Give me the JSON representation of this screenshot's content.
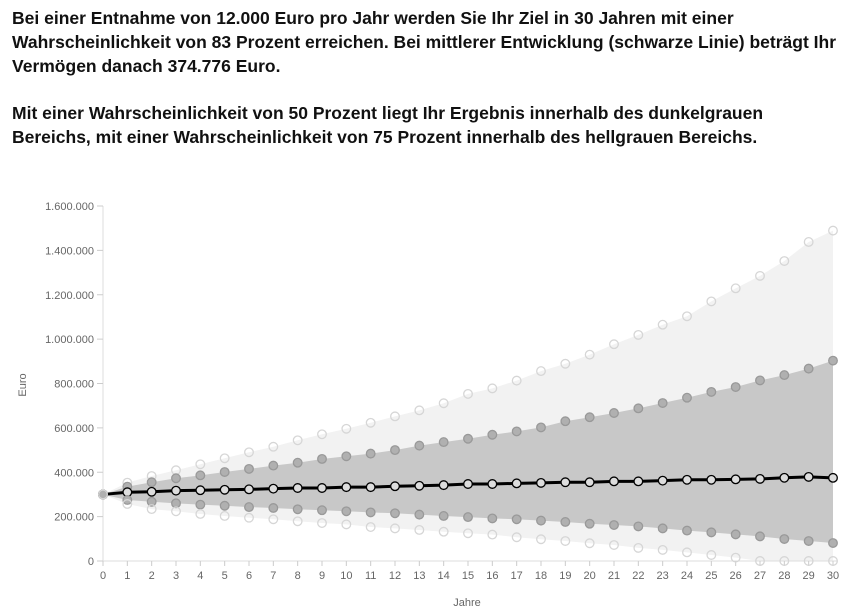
{
  "text": {
    "paragraph1": "Bei einer Entnahme von 12.000 Euro pro Jahr werden Sie Ihr Ziel in 30 Jahren mit einer Wahrscheinlichkeit von 83 Prozent erreichen. Bei mittlerer Entwicklung (schwarze Linie) beträgt Ihr Vermögen danach 374.776 Euro.",
    "paragraph2": "Mit einer Wahrscheinlichkeit von 50 Prozent liegt Ihr Ergebnis innerhalb des dunkelgrauen Bereichs, mit einer Wahrscheinlichkeit von 75 Prozent innerhalb des hellgrauen Bereichs."
  },
  "chart_data": {
    "type": "area",
    "xlabel": "Jahre",
    "ylabel": "Euro",
    "xlim": [
      0,
      30
    ],
    "ylim": [
      0,
      1600000
    ],
    "x": [
      0,
      1,
      2,
      3,
      4,
      5,
      6,
      7,
      8,
      9,
      10,
      11,
      12,
      13,
      14,
      15,
      16,
      17,
      18,
      19,
      20,
      21,
      22,
      23,
      24,
      25,
      26,
      27,
      28,
      29,
      30
    ],
    "x_tick_labels": [
      "0",
      "1",
      "2",
      "3",
      "4",
      "5",
      "6",
      "7",
      "8",
      "9",
      "10",
      "11",
      "12",
      "13",
      "14",
      "15",
      "16",
      "17",
      "18",
      "19",
      "20",
      "21",
      "22",
      "23",
      "24",
      "25",
      "26",
      "27",
      "28",
      "29",
      "30"
    ],
    "y_ticks": [
      0,
      200000,
      400000,
      600000,
      800000,
      1000000,
      1200000,
      1400000,
      1600000
    ],
    "y_tick_labels": [
      "0",
      "200.000",
      "400.000",
      "600.000",
      "800.000",
      "1.000.000",
      "1.200.000",
      "1.400.000",
      "1.600.000"
    ],
    "colors": {
      "light_band": "#f2f2f2",
      "dark_band": "#c8c8c8",
      "median": "#000000",
      "light_point": "#d8d8d8",
      "dark_point": "#b0b0b0"
    },
    "series": [
      {
        "name": "upper_75",
        "values": [
          300000,
          353000,
          383000,
          409000,
          436000,
          463000,
          490000,
          515000,
          544000,
          571000,
          596000,
          623000,
          652000,
          679000,
          711000,
          753000,
          778000,
          813000,
          856000,
          889000,
          930000,
          977000,
          1019000,
          1065000,
          1103000,
          1170000,
          1229000,
          1285000,
          1352000,
          1438000,
          1489000
        ]
      },
      {
        "name": "upper_50",
        "values": [
          300000,
          335000,
          355000,
          373000,
          386000,
          401000,
          415000,
          430000,
          443000,
          460000,
          472000,
          484000,
          500000,
          520000,
          536000,
          551000,
          569000,
          584000,
          602000,
          630000,
          648000,
          667000,
          688000,
          712000,
          736000,
          762000,
          784000,
          814000,
          838000,
          867000,
          903000
        ]
      },
      {
        "name": "median",
        "values": [
          300000,
          310000,
          312000,
          317000,
          319000,
          321000,
          323000,
          326000,
          329000,
          329000,
          333000,
          333000,
          337000,
          339000,
          342000,
          347000,
          347000,
          350000,
          352000,
          355000,
          355000,
          359000,
          359000,
          362000,
          366000,
          366000,
          368000,
          370000,
          375000,
          379000,
          374776
        ]
      },
      {
        "name": "lower_50",
        "values": [
          300000,
          275000,
          267000,
          260000,
          254000,
          249000,
          243000,
          239000,
          233000,
          229000,
          224000,
          219000,
          215000,
          209000,
          203000,
          198000,
          192000,
          188000,
          182000,
          176000,
          168000,
          162000,
          156000,
          147000,
          137000,
          129000,
          120000,
          111000,
          99000,
          90000,
          81000
        ]
      },
      {
        "name": "lower_75",
        "values": [
          300000,
          257000,
          234000,
          224000,
          212000,
          203000,
          195000,
          188000,
          179000,
          171000,
          165000,
          153000,
          147000,
          140000,
          132000,
          125000,
          119000,
          107000,
          98000,
          90000,
          80000,
          72000,
          59000,
          50000,
          39000,
          27000,
          15000,
          0,
          0,
          0,
          0
        ]
      }
    ]
  }
}
